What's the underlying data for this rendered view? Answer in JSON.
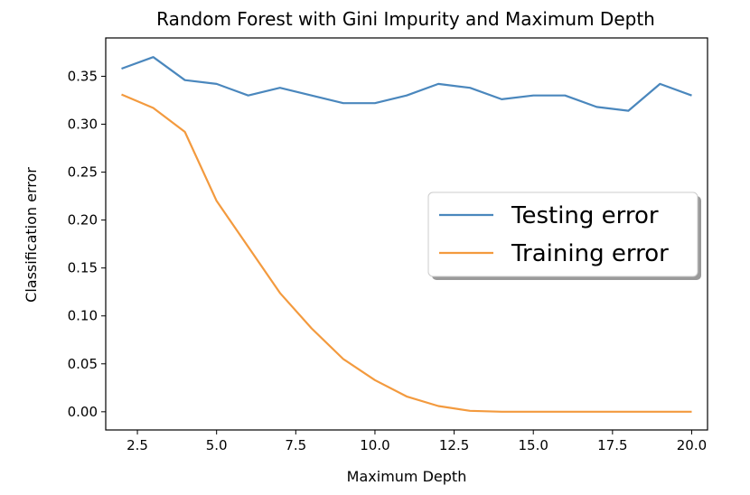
{
  "chart_data": {
    "type": "line",
    "title": "Random Forest with Gini Impurity and Maximum Depth",
    "xlabel": "Maximum Depth",
    "ylabel": "Classification error",
    "xlim": [
      1.5,
      20.5
    ],
    "ylim": [
      -0.019,
      0.39
    ],
    "xticks": [
      2.5,
      5.0,
      7.5,
      10.0,
      12.5,
      15.0,
      17.5,
      20.0
    ],
    "xtick_labels": [
      "2.5",
      "5.0",
      "7.5",
      "10.0",
      "12.5",
      "15.0",
      "17.5",
      "20.0"
    ],
    "yticks": [
      0.0,
      0.05,
      0.1,
      0.15,
      0.2,
      0.25,
      0.3,
      0.35
    ],
    "ytick_labels": [
      "0.00",
      "0.05",
      "0.10",
      "0.15",
      "0.20",
      "0.25",
      "0.30",
      "0.35"
    ],
    "grid": false,
    "legend_position": "center-right",
    "x": [
      2,
      3,
      4,
      5,
      6,
      7,
      8,
      9,
      10,
      11,
      12,
      13,
      14,
      15,
      16,
      17,
      18,
      19,
      20
    ],
    "series": [
      {
        "name": "Testing error",
        "color": "#4a87bd",
        "values": [
          0.358,
          0.37,
          0.346,
          0.342,
          0.33,
          0.338,
          0.33,
          0.322,
          0.322,
          0.33,
          0.342,
          0.338,
          0.326,
          0.33,
          0.33,
          0.318,
          0.314,
          0.342,
          0.33
        ]
      },
      {
        "name": "Training error",
        "color": "#f39a3e",
        "values": [
          0.331,
          0.317,
          0.292,
          0.22,
          0.172,
          0.124,
          0.087,
          0.055,
          0.033,
          0.016,
          0.006,
          0.001,
          0.0,
          0.0,
          0.0,
          0.0,
          0.0,
          0.0,
          0.0
        ]
      }
    ]
  }
}
